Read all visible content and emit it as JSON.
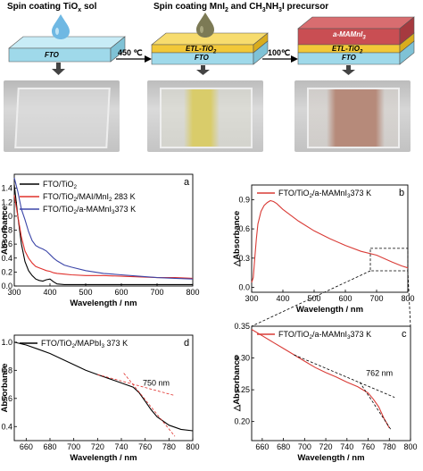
{
  "schematic": {
    "step1_title": "Spin coating TiO",
    "step1_title_sub": "x",
    "step1_title_tail": " sol",
    "step2_title": "Spin coating MnI",
    "step2_title_sub": "2",
    "step2_title_mid": " and CH",
    "step2_title_sub2": "3",
    "step2_title_mid2": "NH",
    "step2_title_sub3": "3",
    "step2_title_tail": "I precursor",
    "arrow1_label": "450 ℃",
    "arrow2_label": "100℃",
    "layer_fto": "FTO",
    "layer_etl": "ETL-TiO",
    "layer_etl_sub": "2",
    "layer_film": "a-MAMnI",
    "layer_film_sub": "3",
    "colors": {
      "fto": "#9fd9ea",
      "etl": "#f2c838",
      "film": "#c94e53",
      "drop1": "#6fb8e3",
      "drop2": "#7c7a55"
    }
  },
  "chart_data": [
    {
      "panel": "a",
      "type": "line",
      "ylabel": "Absorbance",
      "xlabel": "Wavelength / nm",
      "xlim": [
        300,
        800
      ],
      "ylim": [
        0.0,
        1.6
      ],
      "xticks": [
        "300",
        "400",
        "500",
        "600",
        "700",
        "800"
      ],
      "yticks": [
        "0.0",
        "0.2",
        "0.4",
        "0.6",
        "0.8",
        "1.0",
        "1.2",
        "1.4"
      ],
      "series": [
        {
          "name": "FTO/TiO2",
          "color": "#000000",
          "x": [
            300,
            310,
            320,
            330,
            340,
            350,
            360,
            370,
            380,
            390,
            400,
            410,
            420,
            440,
            460,
            500,
            550,
            600,
            650,
            700,
            750,
            800
          ],
          "y": [
            1.45,
            1.0,
            0.6,
            0.35,
            0.22,
            0.15,
            0.1,
            0.08,
            0.07,
            0.09,
            0.1,
            0.06,
            0.03,
            0.02,
            0.02,
            0.02,
            0.02,
            0.02,
            0.02,
            0.02,
            0.02,
            0.02
          ]
        },
        {
          "name": "FTO/TiO2/MAI/MnI2 283 K",
          "color": "#e0302c",
          "x": [
            300,
            310,
            320,
            330,
            340,
            350,
            360,
            370,
            380,
            390,
            400,
            410,
            420,
            440,
            460,
            500,
            550,
            600,
            650,
            700,
            750,
            800
          ],
          "y": [
            1.3,
            1.0,
            0.7,
            0.5,
            0.4,
            0.33,
            0.28,
            0.26,
            0.24,
            0.22,
            0.21,
            0.19,
            0.18,
            0.17,
            0.16,
            0.15,
            0.15,
            0.14,
            0.13,
            0.12,
            0.12,
            0.11
          ]
        },
        {
          "name": "FTO/TiO2/a-MAMnI3 373 K",
          "color": "#3c46a8",
          "x": [
            300,
            310,
            320,
            330,
            340,
            350,
            360,
            370,
            380,
            390,
            400,
            410,
            420,
            440,
            460,
            500,
            550,
            600,
            650,
            700,
            750,
            800
          ],
          "y": [
            1.55,
            1.35,
            1.1,
            0.95,
            0.78,
            0.65,
            0.58,
            0.55,
            0.53,
            0.5,
            0.45,
            0.4,
            0.36,
            0.3,
            0.27,
            0.22,
            0.18,
            0.16,
            0.14,
            0.12,
            0.11,
            0.1
          ]
        }
      ],
      "legend": [
        "FTO/TiO",
        "FTO/TiO",
        "FTO/TiO"
      ],
      "legend_sub": [
        "2",
        "2",
        "2"
      ],
      "legend_tail": [
        "",
        "/MAI/MnI",
        "/a-MAMnI"
      ],
      "legend_sub2": [
        "",
        "2",
        "3"
      ],
      "legend_end": [
        "",
        " 283 K",
        "373 K"
      ],
      "panel_label": "a"
    },
    {
      "panel": "b",
      "type": "line",
      "ylabel": "△Absorbance",
      "xlabel": "Wavelength / nm",
      "xlim": [
        300,
        800
      ],
      "ylim": [
        -0.05,
        1.05
      ],
      "xticks": [
        "300",
        "400",
        "500",
        "600",
        "700",
        "800"
      ],
      "yticks": [
        "0.0",
        "0.3",
        "0.6",
        "0.9"
      ],
      "series": [
        {
          "name": "FTO/TiO2/a-MAMnI3 373 K",
          "color": "#d93b36",
          "x": [
            300,
            305,
            310,
            315,
            320,
            330,
            340,
            350,
            360,
            370,
            380,
            400,
            450,
            500,
            550,
            600,
            650,
            700,
            750,
            780,
            800
          ],
          "y": [
            0.05,
            0.1,
            0.3,
            0.5,
            0.65,
            0.78,
            0.84,
            0.87,
            0.89,
            0.88,
            0.86,
            0.8,
            0.68,
            0.58,
            0.5,
            0.43,
            0.37,
            0.33,
            0.26,
            0.22,
            0.2
          ]
        }
      ],
      "legend_pre": "FTO/TiO",
      "legend_sub": "2",
      "legend_mid": "/a-MAMnI",
      "legend_sub2": "3",
      "legend_end": "373 K",
      "panel_label": "b"
    },
    {
      "panel": "c",
      "type": "line",
      "ylabel": "△Absorbance",
      "xlabel": "Wavelength / nm",
      "xlim": [
        650,
        800
      ],
      "ylim": [
        0.17,
        0.35
      ],
      "xticks": [
        "660",
        "680",
        "700",
        "720",
        "740",
        "760",
        "780",
        "800"
      ],
      "yticks": [
        "0.20",
        "0.25",
        "0.30",
        "0.35"
      ],
      "series": [
        {
          "name": "FTO/TiO2/a-MAMnI3 373 K",
          "color": "#d93b36",
          "x": [
            650,
            660,
            670,
            680,
            690,
            700,
            710,
            720,
            730,
            740,
            750,
            755,
            760,
            765,
            770,
            775,
            780
          ],
          "y": [
            0.345,
            0.335,
            0.325,
            0.315,
            0.305,
            0.295,
            0.285,
            0.277,
            0.27,
            0.262,
            0.255,
            0.25,
            0.245,
            0.235,
            0.223,
            0.205,
            0.19
          ]
        }
      ],
      "annotation": "762 nm",
      "legend_pre": "FTO/TiO",
      "legend_sub": "2",
      "legend_mid": "/a-MAMnI",
      "legend_sub2": "3",
      "legend_end": "373 K",
      "panel_label": "c"
    },
    {
      "panel": "d",
      "type": "line",
      "ylabel": "Absorbance",
      "xlabel": "Wavelength / nm",
      "xlim": [
        650,
        800
      ],
      "ylim": [
        0.3,
        1.05
      ],
      "xticks": [
        "660",
        "680",
        "700",
        "720",
        "740",
        "760",
        "780",
        "800"
      ],
      "yticks": [
        "0.4",
        "0.6",
        "0.8",
        "1.0"
      ],
      "series": [
        {
          "name": "FTO/TiO2/MAPbI3 373 K",
          "color": "#000000",
          "x": [
            650,
            660,
            670,
            680,
            690,
            700,
            710,
            720,
            730,
            740,
            750,
            755,
            760,
            765,
            770,
            780,
            790,
            800
          ],
          "y": [
            1.0,
            0.98,
            0.95,
            0.92,
            0.88,
            0.84,
            0.8,
            0.77,
            0.74,
            0.71,
            0.68,
            0.64,
            0.58,
            0.52,
            0.47,
            0.41,
            0.38,
            0.37
          ]
        }
      ],
      "annotation": "750 nm",
      "legend_pre": "FTO/TiO",
      "legend_sub": "2",
      "legend_mid": "/MAPbI",
      "legend_sub2": "3",
      "legend_end": " 373 K",
      "panel_label": "d"
    }
  ]
}
